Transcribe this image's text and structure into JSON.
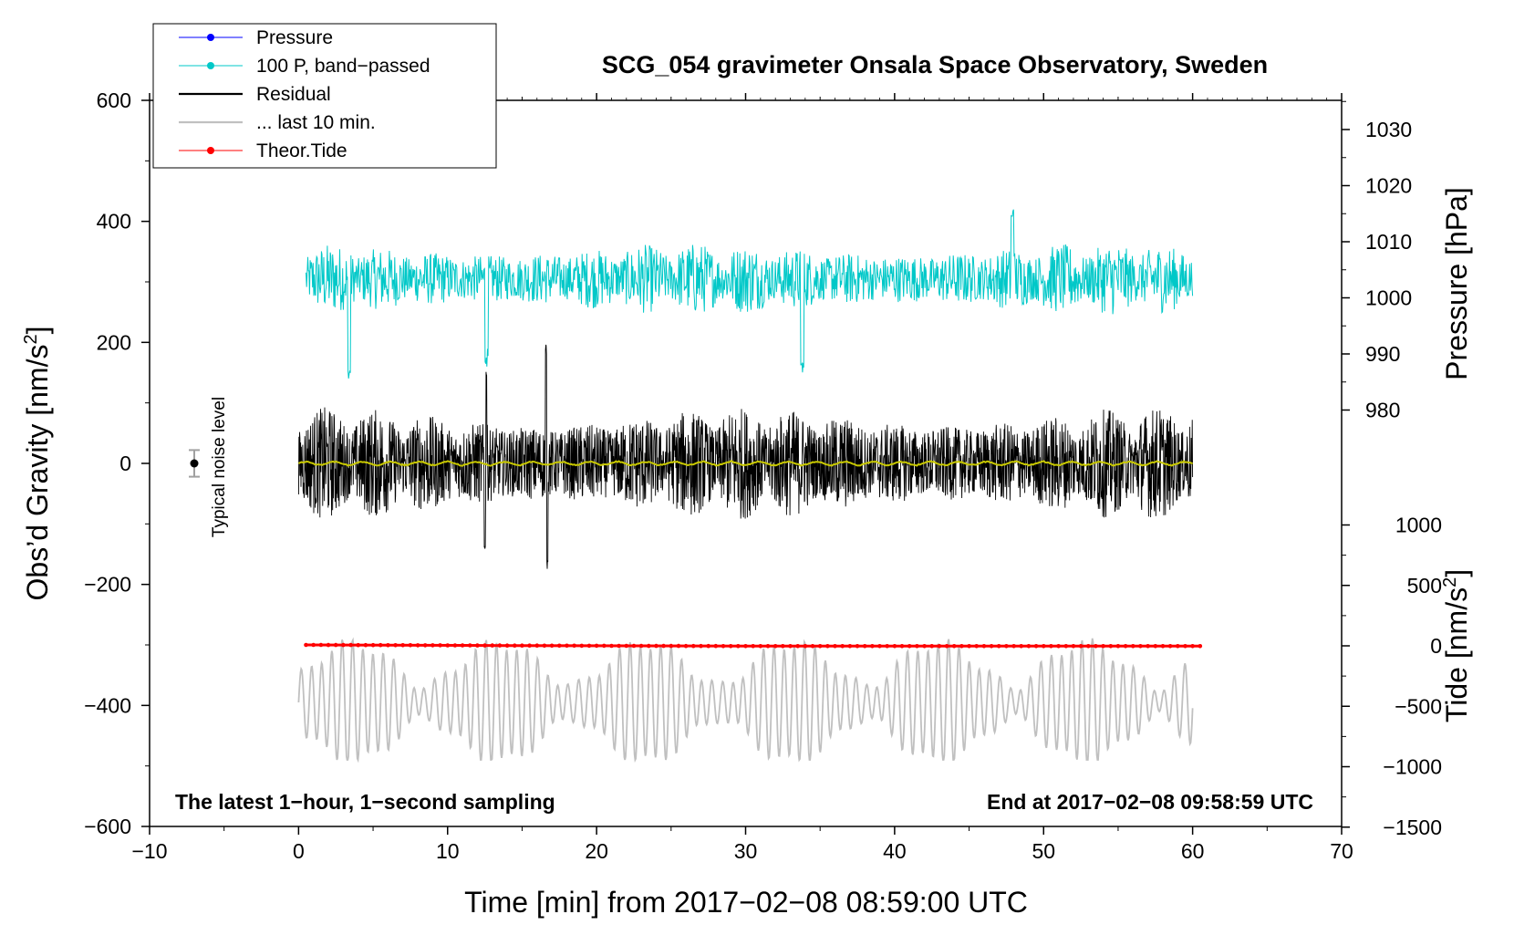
{
  "chart_data": {
    "type": "line",
    "title": "SCG_054 gravimeter Onsala Space Observatory, Sweden",
    "xlabel": "Time [min] from 2017−02−08 08:59:00 UTC",
    "ylabel_left": "Obs’d Gravity [nm/s",
    "ylabel_right_pressure": "Pressure [hPa]",
    "ylabel_right_tide": "Tide [nm/s",
    "unit_superscript": "2",
    "unit_close": "]",
    "xlim": [
      -10,
      70
    ],
    "ylim_left": [
      -600,
      600
    ],
    "x_ticks": [
      -10,
      0,
      10,
      20,
      30,
      40,
      50,
      60,
      70
    ],
    "x_tick_labels": [
      "−10",
      "0",
      "10",
      "20",
      "30",
      "40",
      "50",
      "60",
      "70"
    ],
    "y_ticks_left": [
      600,
      400,
      200,
      0,
      -200,
      -400,
      -600
    ],
    "y_tick_labels_left": [
      "600",
      "400",
      "200",
      "0",
      "−200",
      "−400",
      "−600"
    ],
    "pressure_ticks": [
      1030,
      1020,
      1010,
      1000,
      990,
      980
    ],
    "pressure_tick_labels": [
      "1030",
      "1020",
      "1010",
      "1000",
      "990",
      "980"
    ],
    "tide_ticks": [
      1000,
      500,
      0,
      -500,
      -1000,
      -1500
    ],
    "tide_tick_labels": [
      "1000",
      "500",
      "0",
      "−500",
      "−1000",
      "−1500"
    ],
    "annotation_left": "The latest 1−hour, 1−second sampling",
    "annotation_right": "End at 2017−02−08 09:58:59 UTC",
    "noise_label": "Typical noise level",
    "noise_bar": {
      "x": -7,
      "y": 0,
      "half_range": 22
    },
    "legend": [
      {
        "label": "Pressure",
        "color": "#0000ff",
        "marker": "dot"
      },
      {
        "label": "100 P, band−passed",
        "color": "#00c8c8",
        "marker": "dot"
      },
      {
        "label": "Residual",
        "color": "#000000",
        "marker": "none"
      },
      {
        "label": "... last 10 min.",
        "color": "#c0c0c0",
        "marker": "none"
      },
      {
        "label": "Theor.Tide",
        "color": "#ff0000",
        "marker": "dot"
      }
    ],
    "series": [
      {
        "name": "100 P, band−passed",
        "color": "#00c8c8",
        "x_range": [
          0.5,
          60
        ],
        "center": 305,
        "amplitude": 55,
        "note": "oscillating band-passed pressure signal roughly 150–420 nm/s²"
      },
      {
        "name": "Residual",
        "color": "#000000",
        "x_range": [
          0,
          60
        ],
        "center": 0,
        "amplitude": 75,
        "peaks": [
          {
            "x": 12.6,
            "y": 155
          },
          {
            "x": 16.6,
            "y": 200
          },
          {
            "x": 16.7,
            "y": -178
          },
          {
            "x": 12.5,
            "y": -150
          }
        ],
        "note": "dense residual noise roughly −180 to 200 nm/s²"
      },
      {
        "name": "Residual (smoothed)",
        "color": "#c8c800",
        "x_range": [
          0,
          60
        ],
        "center": 0,
        "amplitude": 4
      },
      {
        "name": "... last 10 min.",
        "color": "#c0c0c0",
        "x_range": [
          0,
          60
        ],
        "center": -395,
        "amplitude": 70,
        "peaks": [
          {
            "x": 25.8,
            "y": -255
          },
          {
            "x": 25.6,
            "y": -485
          }
        ],
        "note": "oscillating gray trace roughly −490 to −255 nm/s²"
      },
      {
        "name": "Theor.Tide",
        "color": "#ff0000",
        "x": [
          0.5,
          14,
          30,
          45,
          60.5
        ],
        "y": [
          -300,
          -301,
          -302,
          -302,
          -302
        ]
      }
    ]
  }
}
